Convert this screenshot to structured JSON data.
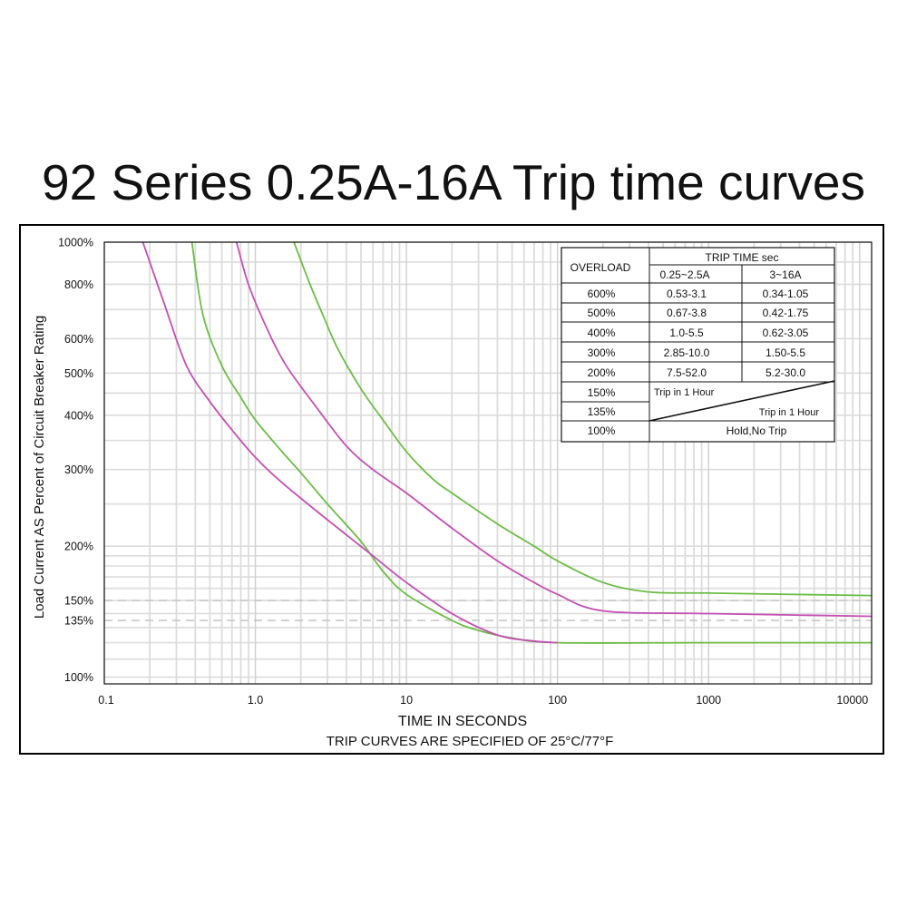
{
  "page": {
    "title": "92 Series 0.25A-16A Trip time curves"
  },
  "chart_data": {
    "type": "line",
    "title": "92 Series 0.25A-16A Trip time curves",
    "xlabel": "TIME IN SECONDS",
    "subtitle": "TRIP CURVES ARE SPECIFIED OF 25°C/77°F",
    "ylabel": "Load Current AS Percent of Circuit Breaker Rating",
    "x_scale": "log",
    "xlim": [
      0.1,
      12000
    ],
    "x_ticks": [
      0.1,
      1.0,
      10,
      100,
      1000,
      10000
    ],
    "x_tick_labels": [
      "0.1",
      "1.0",
      "10",
      "100",
      "1000",
      "10000"
    ],
    "y_scale": "log",
    "ylim": [
      80,
      1000
    ],
    "y_ticks": [
      100,
      135,
      150,
      200,
      300,
      400,
      500,
      600,
      800,
      1000
    ],
    "y_tick_labels": [
      "100%",
      "135%",
      "150%",
      "200%",
      "300%",
      "400%",
      "500%",
      "600%",
      "800%",
      "1000%"
    ],
    "reference_lines": [
      135,
      150
    ],
    "grid": true,
    "colors": {
      "green": "#6cbd45",
      "magenta": "#c44fb4"
    },
    "series": [
      {
        "color": "green",
        "points": [
          [
            0.38,
            1000
          ],
          [
            0.45,
            680
          ],
          [
            0.6,
            520
          ],
          [
            0.8,
            440
          ],
          [
            1.0,
            390
          ],
          [
            1.5,
            330
          ],
          [
            2,
            295
          ],
          [
            3,
            250
          ],
          [
            5,
            205
          ],
          [
            7,
            175
          ],
          [
            10,
            155
          ],
          [
            20,
            135
          ],
          [
            30,
            128
          ],
          [
            50,
            123
          ],
          [
            100,
            120
          ],
          [
            1000,
            120
          ],
          [
            12000,
            120
          ]
        ]
      },
      {
        "color": "magenta",
        "points": [
          [
            0.18,
            1000
          ],
          [
            0.25,
            720
          ],
          [
            0.35,
            520
          ],
          [
            0.5,
            430
          ],
          [
            0.7,
            370
          ],
          [
            1.0,
            320
          ],
          [
            1.5,
            280
          ],
          [
            3,
            230
          ],
          [
            6,
            190
          ],
          [
            10,
            165
          ],
          [
            20,
            140
          ],
          [
            40,
            125
          ],
          [
            70,
            121
          ],
          [
            100,
            120
          ]
        ]
      },
      {
        "color": "magenta",
        "points": [
          [
            0.75,
            1000
          ],
          [
            0.9,
            800
          ],
          [
            1.2,
            630
          ],
          [
            1.6,
            520
          ],
          [
            2.5,
            420
          ],
          [
            4,
            340
          ],
          [
            6,
            300
          ],
          [
            10,
            265
          ],
          [
            20,
            220
          ],
          [
            40,
            185
          ],
          [
            70,
            165
          ],
          [
            100,
            155
          ],
          [
            200,
            142
          ],
          [
            1000,
            140
          ],
          [
            12000,
            138
          ]
        ]
      },
      {
        "color": "green",
        "points": [
          [
            1.8,
            1000
          ],
          [
            2.3,
            800
          ],
          [
            2.8,
            680
          ],
          [
            3.5,
            570
          ],
          [
            5,
            460
          ],
          [
            7,
            390
          ],
          [
            10,
            330
          ],
          [
            15,
            285
          ],
          [
            20,
            265
          ],
          [
            40,
            225
          ],
          [
            70,
            200
          ],
          [
            100,
            185
          ],
          [
            200,
            165
          ],
          [
            400,
            157
          ],
          [
            1000,
            156
          ],
          [
            12000,
            154
          ]
        ]
      }
    ]
  },
  "table": {
    "header_overload": "OVERLOAD",
    "header_trip_time": "TRIP TIME sec",
    "header_col1": "0.25~2.5A",
    "header_col2": "3~16A",
    "rows": [
      {
        "overload": "600%",
        "c1": "0.53-3.1",
        "c2": "0.34-1.05"
      },
      {
        "overload": "500%",
        "c1": "0.67-3.8",
        "c2": "0.42-1.75"
      },
      {
        "overload": "400%",
        "c1": "1.0-5.5",
        "c2": "0.62-3.05"
      },
      {
        "overload": "300%",
        "c1": "2.85-10.0",
        "c2": "1.50-5.5"
      },
      {
        "overload": "200%",
        "c1": "7.5-52.0",
        "c2": "5.2-30.0"
      }
    ],
    "row_150": {
      "overload": "150%",
      "text": "Trip in 1 Hour"
    },
    "row_135": {
      "overload": "135%",
      "text": "Trip in 1 Hour"
    },
    "row_100": {
      "overload": "100%",
      "text": "Hold,No Trip"
    }
  }
}
